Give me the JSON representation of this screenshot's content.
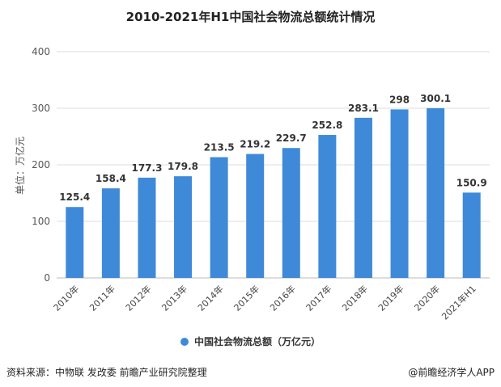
{
  "chart_data": {
    "type": "bar",
    "title": "2010-2021年H1中国社会物流总额统计情况",
    "ylabel": "单位：万亿元",
    "ylim": [
      0,
      400
    ],
    "yticks": [
      "0",
      "100",
      "200",
      "300",
      "400"
    ],
    "categories": [
      "2010年",
      "2011年",
      "2012年",
      "2013年",
      "2014年",
      "2015年",
      "2016年",
      "2017年",
      "2018年",
      "2019年",
      "2020年",
      "2021年H1"
    ],
    "series": [
      {
        "name": "中国社会物流总额（万亿元）",
        "values": [
          125.4,
          158.4,
          177.3,
          179.8,
          213.5,
          219.2,
          229.7,
          252.8,
          283.1,
          298,
          300.1,
          150.9
        ],
        "labels": [
          "125.4",
          "158.4",
          "177.3",
          "179.8",
          "213.5",
          "219.2",
          "229.7",
          "252.8",
          "283.1",
          "298",
          "300.1",
          "150.9"
        ]
      }
    ],
    "legend_position": "bottom",
    "grid": true,
    "bar_color": "#3f8ad8"
  },
  "footer": {
    "source": "资料来源：中物联 发改委 前瞻产业研究院整理",
    "brand": "@前瞻经济学人APP"
  }
}
